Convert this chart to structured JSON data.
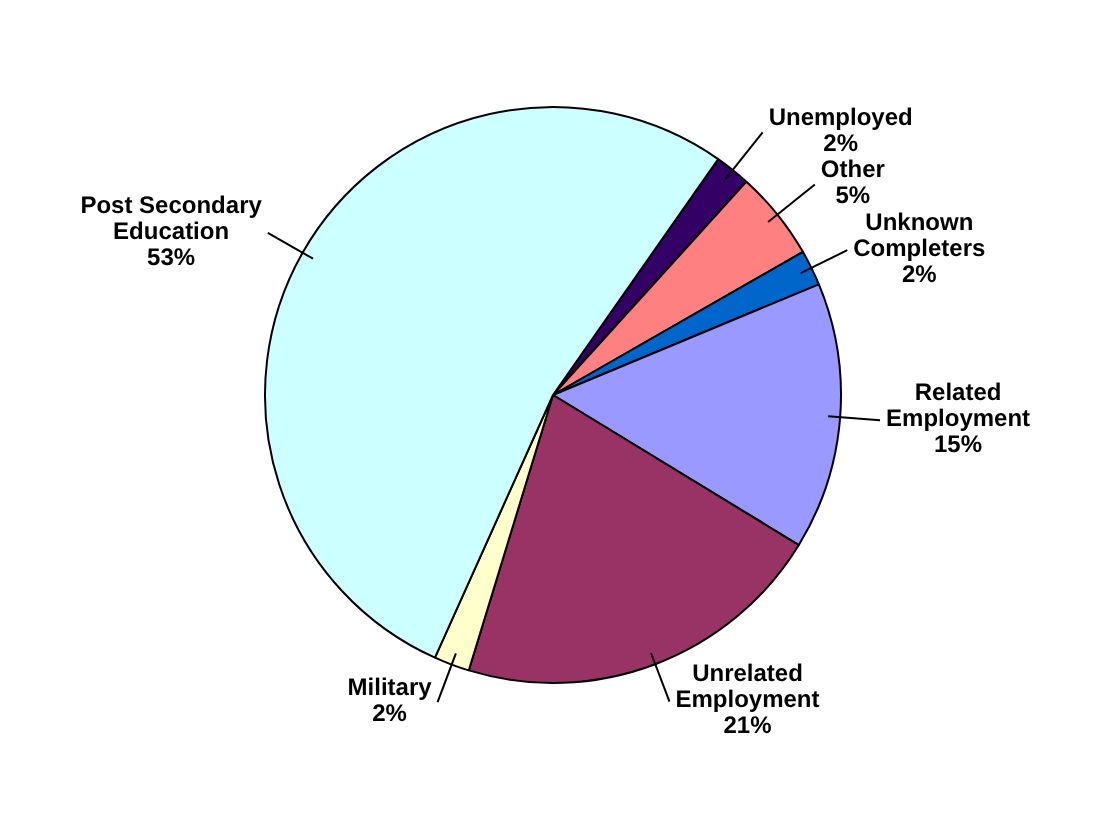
{
  "chart_data": {
    "type": "pie",
    "categories": [
      "Unemployed",
      "Other",
      "Unknown Completers",
      "Related Employment",
      "Unrelated Employment",
      "Military",
      "Post Secondary Education"
    ],
    "values": [
      2,
      5,
      2,
      15,
      21,
      2,
      53
    ],
    "colors": [
      "#330066",
      "#ff8080",
      "#0066cc",
      "#9999ff",
      "#993366",
      "#ffffcc",
      "#ccffff"
    ],
    "value_labels": [
      "2%",
      "5%",
      "2%",
      "15%",
      "21%",
      "2%",
      "53%"
    ],
    "legend": false
  }
}
